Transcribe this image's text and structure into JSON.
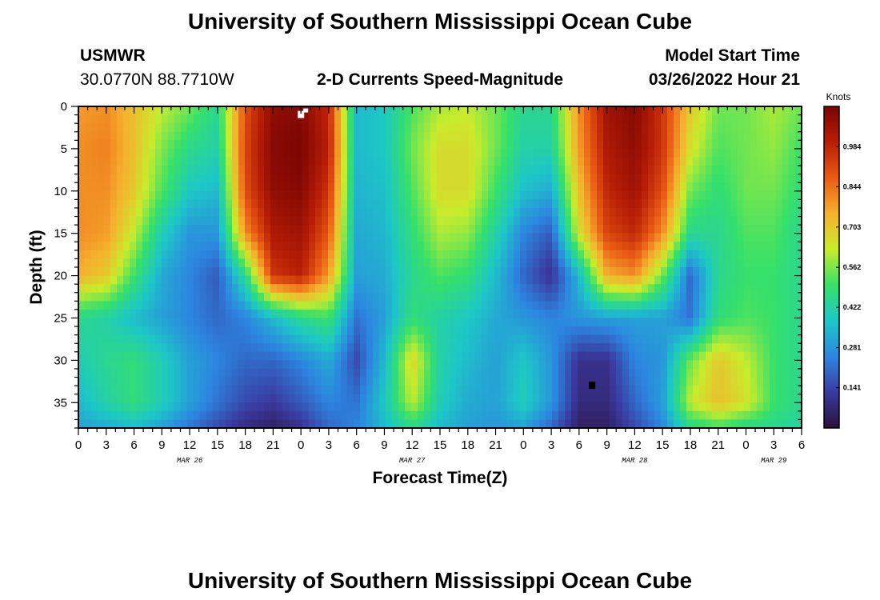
{
  "header": {
    "title": "University of Southern Mississippi Ocean Cube",
    "station": "USMWR",
    "coords": "30.0770N  88.7710W",
    "subtitle": "2-D Currents Speed-Magnitude",
    "start_label": "Model Start Time",
    "start_value": "03/26/2022 Hour 21"
  },
  "footer": {
    "title": "University of Southern Mississippi Ocean Cube"
  },
  "colors": {
    "ramp": [
      "#2b0f3a",
      "#3a3aa0",
      "#2c86e0",
      "#1dc7c7",
      "#35e06a",
      "#c8ec2c",
      "#f5b12e",
      "#ea5a14",
      "#b81e06",
      "#7a0403"
    ]
  },
  "chart_data": {
    "type": "heatmap",
    "title": "2-D Currents Speed-Magnitude",
    "xlabel": "Forecast Time(Z)",
    "ylabel": "Depth (ft)",
    "x_range_hours": [
      0,
      78
    ],
    "y_range_ft": [
      0,
      38
    ],
    "x_ticks": [
      {
        "h": 0,
        "label": "0"
      },
      {
        "h": 3,
        "label": "3"
      },
      {
        "h": 6,
        "label": "6"
      },
      {
        "h": 9,
        "label": "9"
      },
      {
        "h": 12,
        "label": "12"
      },
      {
        "h": 15,
        "label": "15"
      },
      {
        "h": 18,
        "label": "18"
      },
      {
        "h": 21,
        "label": "21"
      },
      {
        "h": 24,
        "label": "0"
      },
      {
        "h": 27,
        "label": "3"
      },
      {
        "h": 30,
        "label": "6"
      },
      {
        "h": 33,
        "label": "9"
      },
      {
        "h": 36,
        "label": "12"
      },
      {
        "h": 39,
        "label": "15"
      },
      {
        "h": 42,
        "label": "18"
      },
      {
        "h": 45,
        "label": "21"
      },
      {
        "h": 48,
        "label": "0"
      },
      {
        "h": 51,
        "label": "3"
      },
      {
        "h": 54,
        "label": "6"
      },
      {
        "h": 57,
        "label": "9"
      },
      {
        "h": 60,
        "label": "12"
      },
      {
        "h": 63,
        "label": "15"
      },
      {
        "h": 66,
        "label": "18"
      },
      {
        "h": 69,
        "label": "21"
      },
      {
        "h": 72,
        "label": "0"
      },
      {
        "h": 75,
        "label": "3"
      },
      {
        "h": 78,
        "label": "6"
      }
    ],
    "date_labels": [
      {
        "h": 12,
        "label": "MAR 26"
      },
      {
        "h": 36,
        "label": "MAR 27"
      },
      {
        "h": 60,
        "label": "MAR 28"
      },
      {
        "h": 75,
        "label": "MAR 29"
      }
    ],
    "y_ticks": [
      0,
      5,
      10,
      15,
      20,
      25,
      30,
      35
    ],
    "colorbar": {
      "title": "Knots",
      "range": [
        0,
        1.125
      ],
      "tick_values": [
        0.984,
        0.844,
        0.703,
        0.562,
        0.422,
        0.281,
        0.141
      ],
      "tick_labels": [
        "0.984",
        "0.844",
        "0.703",
        "0.562",
        "0.422",
        "0.281",
        "0.141"
      ]
    },
    "grid_cols_hours": [
      0,
      3,
      6,
      9,
      12,
      15,
      18,
      21,
      24,
      27,
      30,
      33,
      36,
      39,
      42,
      45,
      48,
      51,
      54,
      57,
      60,
      63,
      66,
      69,
      72,
      75,
      78
    ],
    "grid_rows_ft": [
      0,
      5,
      10,
      15,
      20,
      25,
      30,
      35,
      38
    ],
    "speed_knots": [
      [
        0.78,
        0.8,
        0.72,
        0.62,
        0.55,
        0.45,
        0.9,
        1.08,
        1.1,
        0.98,
        0.35,
        0.38,
        0.52,
        0.6,
        0.62,
        0.55,
        0.45,
        0.45,
        0.8,
        1.05,
        1.1,
        0.95,
        0.7,
        0.55,
        0.55,
        0.6,
        0.55
      ],
      [
        0.8,
        0.82,
        0.72,
        0.56,
        0.46,
        0.42,
        0.92,
        1.1,
        1.12,
        1.0,
        0.35,
        0.38,
        0.55,
        0.66,
        0.66,
        0.55,
        0.42,
        0.42,
        0.78,
        1.02,
        1.08,
        0.95,
        0.65,
        0.52,
        0.55,
        0.58,
        0.5
      ],
      [
        0.8,
        0.8,
        0.7,
        0.52,
        0.38,
        0.35,
        0.9,
        1.08,
        1.1,
        0.95,
        0.34,
        0.36,
        0.52,
        0.66,
        0.66,
        0.5,
        0.36,
        0.32,
        0.72,
        0.98,
        1.05,
        0.9,
        0.55,
        0.48,
        0.55,
        0.55,
        0.48
      ],
      [
        0.8,
        0.78,
        0.62,
        0.4,
        0.28,
        0.28,
        0.8,
        1.02,
        1.05,
        0.88,
        0.32,
        0.34,
        0.48,
        0.6,
        0.58,
        0.42,
        0.25,
        0.18,
        0.65,
        0.92,
        0.98,
        0.8,
        0.45,
        0.45,
        0.52,
        0.52,
        0.45
      ],
      [
        0.75,
        0.7,
        0.5,
        0.32,
        0.25,
        0.18,
        0.45,
        0.95,
        1.0,
        0.78,
        0.3,
        0.32,
        0.45,
        0.52,
        0.48,
        0.35,
        0.2,
        0.1,
        0.35,
        0.75,
        0.8,
        0.55,
        0.2,
        0.45,
        0.5,
        0.5,
        0.45
      ],
      [
        0.45,
        0.42,
        0.35,
        0.3,
        0.25,
        0.2,
        0.25,
        0.35,
        0.45,
        0.5,
        0.22,
        0.3,
        0.48,
        0.42,
        0.38,
        0.32,
        0.28,
        0.25,
        0.28,
        0.3,
        0.3,
        0.3,
        0.22,
        0.48,
        0.52,
        0.5,
        0.45
      ],
      [
        0.4,
        0.45,
        0.48,
        0.4,
        0.3,
        0.25,
        0.2,
        0.2,
        0.25,
        0.32,
        0.15,
        0.35,
        0.68,
        0.42,
        0.35,
        0.3,
        0.38,
        0.28,
        0.1,
        0.1,
        0.25,
        0.28,
        0.55,
        0.7,
        0.62,
        0.5,
        0.45
      ],
      [
        0.35,
        0.42,
        0.48,
        0.4,
        0.3,
        0.22,
        0.15,
        0.12,
        0.18,
        0.25,
        0.22,
        0.38,
        0.62,
        0.4,
        0.32,
        0.3,
        0.4,
        0.28,
        0.08,
        0.08,
        0.2,
        0.3,
        0.62,
        0.72,
        0.65,
        0.5,
        0.45
      ],
      [
        0.3,
        0.32,
        0.35,
        0.3,
        0.22,
        0.15,
        0.08,
        0.05,
        0.1,
        0.2,
        0.25,
        0.35,
        0.45,
        0.35,
        0.3,
        0.28,
        0.3,
        0.2,
        0.05,
        0.05,
        0.15,
        0.25,
        0.45,
        0.5,
        0.45,
        0.45,
        0.42
      ]
    ],
    "annotations": [
      {
        "type": "missing-cell-white",
        "h": 24.0,
        "depth": 1.0
      },
      {
        "type": "missing-cell-black",
        "h": 55.4,
        "depth": 33.0
      }
    ]
  }
}
